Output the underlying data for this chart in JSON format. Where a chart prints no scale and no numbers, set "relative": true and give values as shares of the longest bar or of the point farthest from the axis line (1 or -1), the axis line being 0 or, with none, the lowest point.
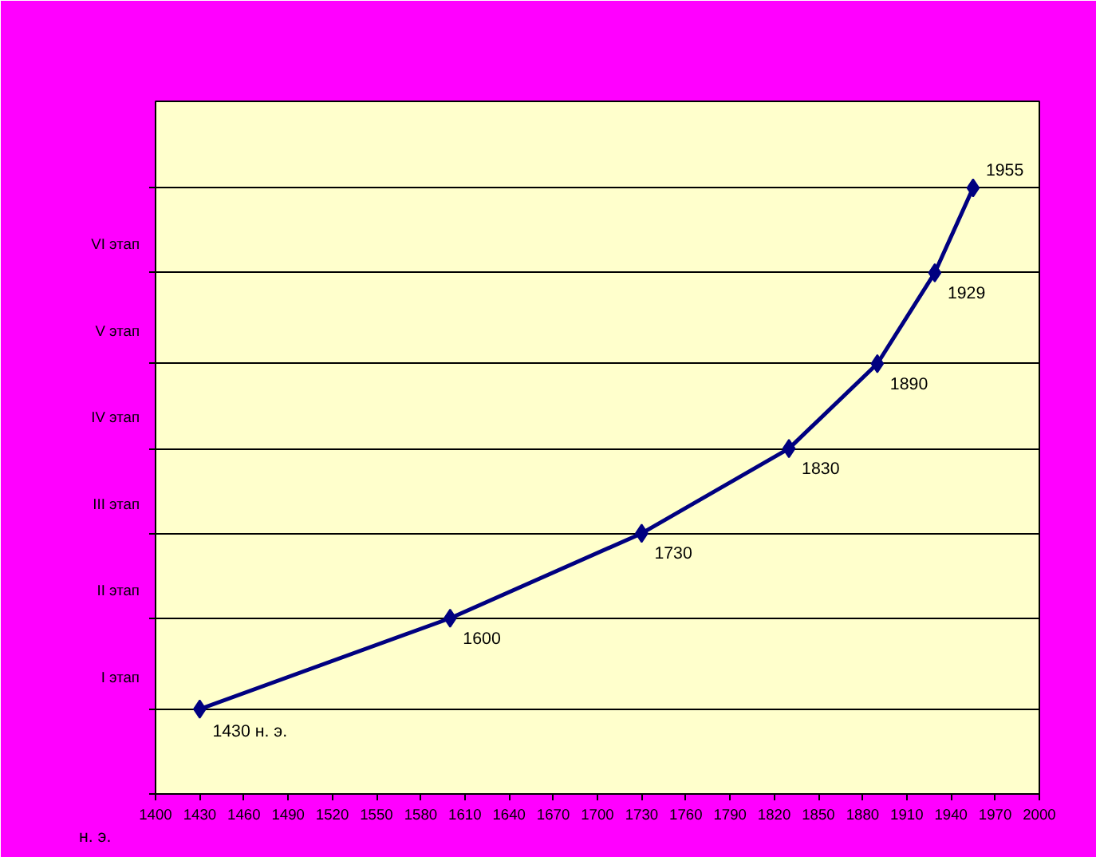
{
  "chart_data": {
    "type": "line",
    "xlabel": "н. э.",
    "relative": true,
    "x": [
      1430,
      1600,
      1730,
      1830,
      1890,
      1929,
      1955
    ],
    "series": [
      {
        "color": "#000080",
        "values": [
          0.14,
          0.29,
          0.43,
          0.57,
          0.71,
          0.86,
          1
        ]
      }
    ],
    "xlim": [
      1400,
      2000
    ],
    "xticks": [
      1400,
      1430,
      1460,
      1490,
      1520,
      1550,
      1580,
      1610,
      1640,
      1670,
      1700,
      1730,
      1760,
      1790,
      1820,
      1850,
      1880,
      1910,
      1940,
      1970,
      2000
    ],
    "annotations": [
      "I этап",
      "II этап",
      "III этап",
      "IV этап",
      "V этап",
      "VI этап",
      {
        "text": "1430 н. э.",
        "x": 1430,
        "y": 0.14
      },
      {
        "text": "1600",
        "x": 1600,
        "y": 0.29
      },
      {
        "text": "1730",
        "x": 1730,
        "y": 0.43
      },
      {
        "text": "1830",
        "x": 1830,
        "y": 0.57
      },
      {
        "text": "1890",
        "x": 1890,
        "y": 0.71
      },
      {
        "text": "1929",
        "x": 1929,
        "y": 0.86
      },
      {
        "text": "1955",
        "x": 1955,
        "y": 1
      }
    ],
    "grid": "y",
    "marker": "diamond",
    "line_style": "solid"
  }
}
